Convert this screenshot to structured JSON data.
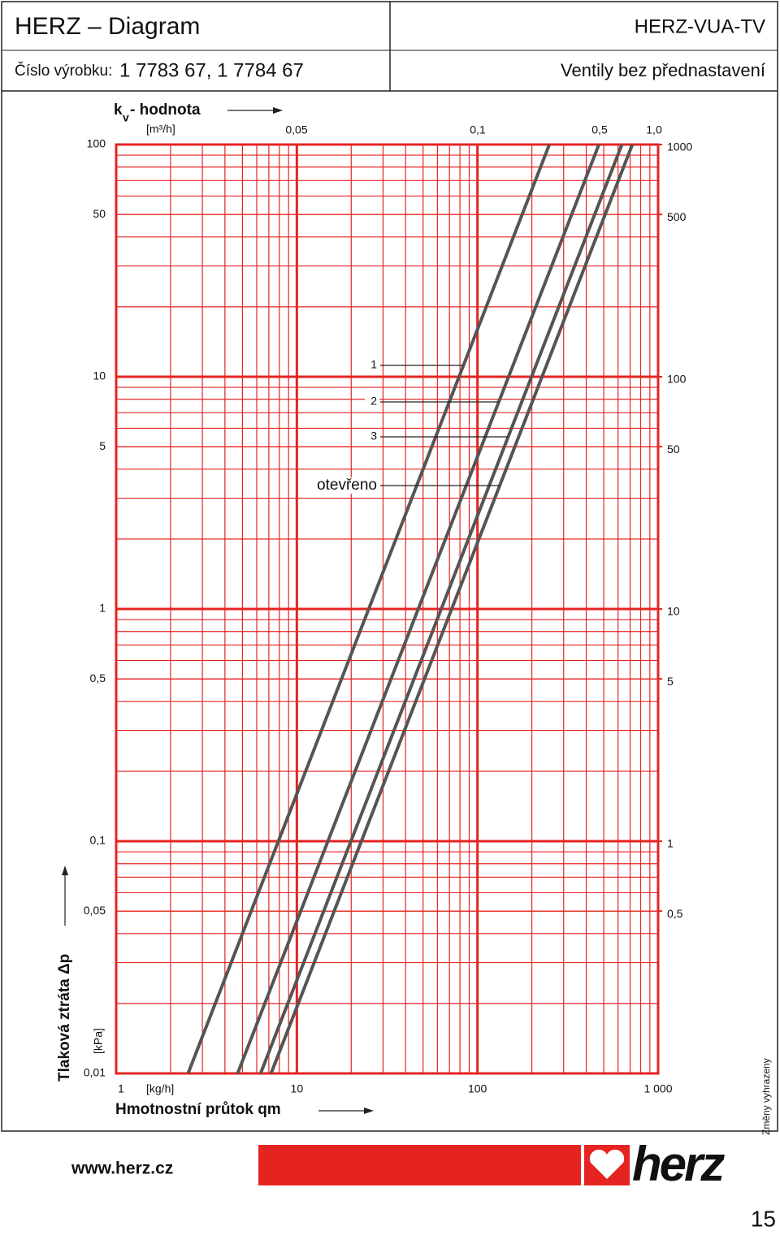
{
  "header": {
    "title": "HERZ – Diagram",
    "product_label": "Číslo výrobku:",
    "product_numbers": "1 7783 67, 1 7784 67",
    "model": "HERZ-VUA-TV",
    "subtitle": "Ventily bez přednastavení"
  },
  "chart_data": {
    "type": "line",
    "log_x": true,
    "log_y": true,
    "grid": true,
    "grid_color": "#e52421",
    "line_color": "#555555",
    "kv_title": "k",
    "kv_subscript": "v",
    "kv_title_rest": " - hodnota",
    "kv_unit": "[m³/h]",
    "kv_labels": [
      "0,05",
      "0,1",
      "0,5",
      "1,0"
    ],
    "xlabel": "Hmotnostní průtok qm",
    "xunit": "[kg/h]",
    "ylabel": "Tlaková ztráta Δp",
    "yunit": "[kPa]",
    "xlim": [
      1,
      1000
    ],
    "xticks": [
      1,
      10,
      100,
      {
        "value": 1000,
        "label": "1 000"
      }
    ],
    "xminor": [
      2,
      3,
      4,
      5,
      6,
      7,
      8,
      9,
      20,
      30,
      40,
      50,
      60,
      70,
      80,
      90,
      200,
      300,
      400,
      500,
      600,
      700,
      800,
      900
    ],
    "ylim": [
      0.01,
      100
    ],
    "yticks": [
      100,
      50,
      10,
      5,
      1,
      {
        "value": 0.5,
        "label": "0,5"
      },
      {
        "value": 0.1,
        "label": "0,1"
      },
      {
        "value": 0.05,
        "label": "0,05"
      },
      {
        "value": 0.01,
        "label": "0,01"
      }
    ],
    "yminor": [
      0.02,
      0.03,
      0.04,
      0.05,
      0.06,
      0.07,
      0.08,
      0.09,
      0.2,
      0.3,
      0.4,
      0.5,
      0.6,
      0.7,
      0.8,
      0.9,
      2,
      3,
      4,
      5,
      6,
      7,
      8,
      9,
      20,
      30,
      40,
      50,
      60,
      70,
      80,
      90
    ],
    "y2lim": [
      0.1,
      1000
    ],
    "y2ticks": [
      1000,
      500,
      100,
      50,
      10,
      5,
      1,
      {
        "value": 0.5,
        "label": "0,5"
      }
    ],
    "series": [
      {
        "name": "1",
        "x": [
          2.5,
          250
        ],
        "values": [
          0.01,
          100
        ]
      },
      {
        "name": "2",
        "x": [
          4.7,
          470
        ],
        "values": [
          0.01,
          100
        ]
      },
      {
        "name": "3",
        "x": [
          6.3,
          630
        ],
        "values": [
          0.01,
          100
        ]
      },
      {
        "name": "otevřeno",
        "x": [
          7.2,
          720
        ],
        "values": [
          0.01,
          100
        ]
      }
    ]
  },
  "footer": {
    "website": "www.herz.cz",
    "logo": "herz",
    "note": "Změny vyhrazeny",
    "page": "15"
  }
}
